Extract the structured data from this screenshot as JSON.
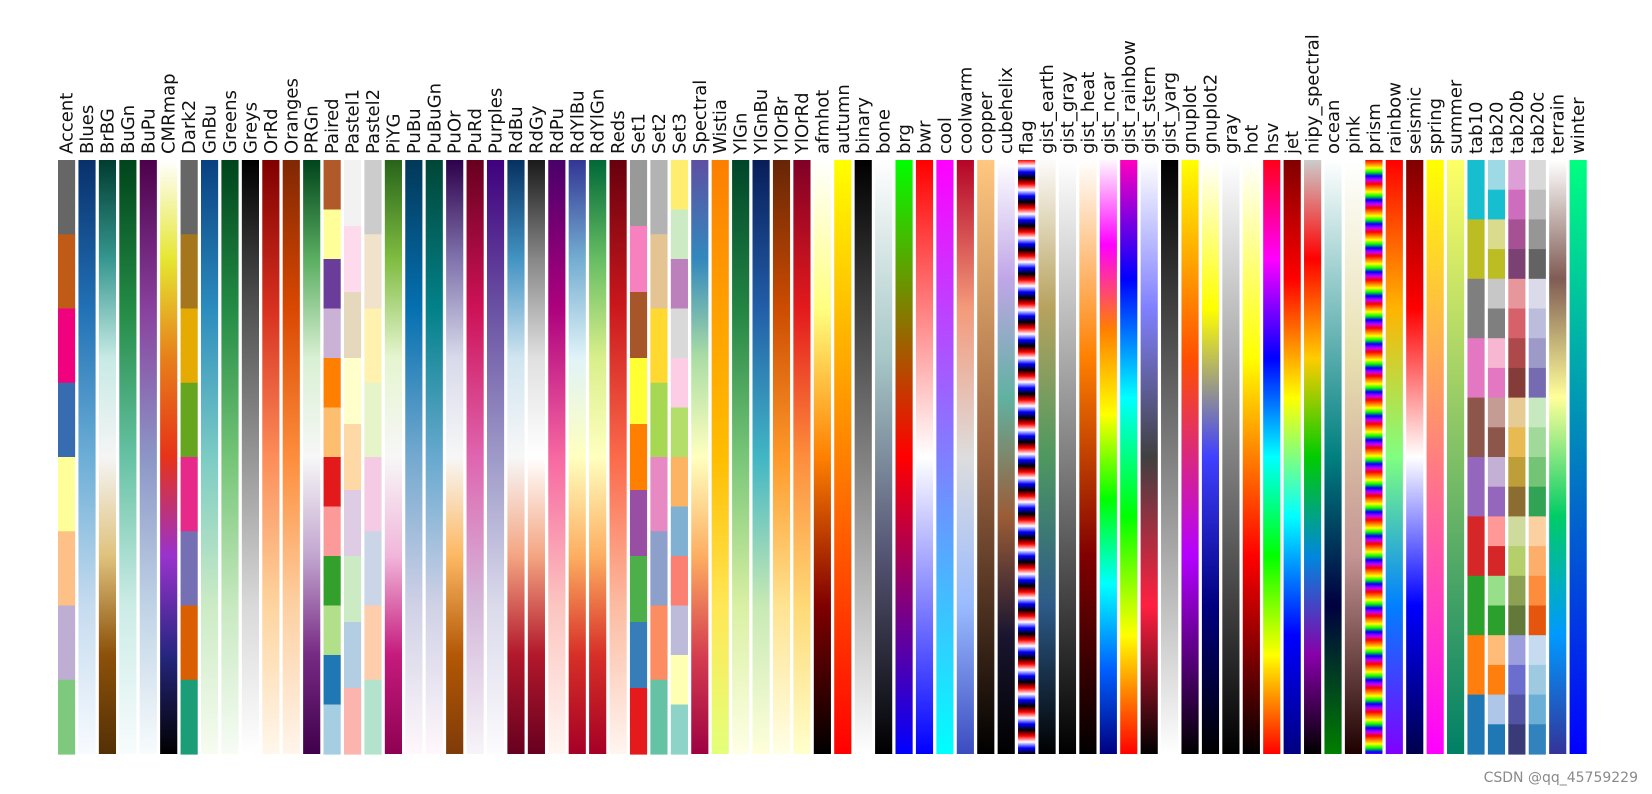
{
  "watermark": "CSDN @qq_45759229",
  "chart_data": {
    "type": "colormap-swatches",
    "title": "",
    "colormaps": [
      {
        "name": "Accent",
        "kind": "discrete",
        "colors": [
          "#666666",
          "#bf5b17",
          "#f0027f",
          "#386cb0",
          "#ffff99",
          "#fdc086",
          "#beaed4",
          "#7fc97f"
        ]
      },
      {
        "name": "Blues",
        "kind": "continuous",
        "colors": [
          "#08306b",
          "#2171b5",
          "#6baed6",
          "#c6dbef",
          "#f7fbff"
        ]
      },
      {
        "name": "BrBG",
        "kind": "continuous",
        "colors": [
          "#003c30",
          "#35978f",
          "#c7eae5",
          "#f5f5f5",
          "#dfc27d",
          "#8c510a",
          "#543005"
        ]
      },
      {
        "name": "BuGn",
        "kind": "continuous",
        "colors": [
          "#00441b",
          "#238b45",
          "#66c2a4",
          "#ccece6",
          "#f7fcfd"
        ]
      },
      {
        "name": "BuPu",
        "kind": "continuous",
        "colors": [
          "#4d004b",
          "#88419d",
          "#8c96c6",
          "#bfd3e6",
          "#f7fcfd"
        ]
      },
      {
        "name": "CMRmap",
        "kind": "continuous",
        "colors": [
          "#ffffff",
          "#e6e632",
          "#e6801a",
          "#e63319",
          "#9933cc",
          "#262680",
          "#000000"
        ]
      },
      {
        "name": "Dark2",
        "kind": "discrete",
        "colors": [
          "#666666",
          "#a6761d",
          "#e6ab02",
          "#66a61e",
          "#e7298a",
          "#7570b3",
          "#d95f02",
          "#1b9e77"
        ]
      },
      {
        "name": "GnBu",
        "kind": "continuous",
        "colors": [
          "#084081",
          "#2b8cbe",
          "#7bccc4",
          "#ccebc5",
          "#f7fcf0"
        ]
      },
      {
        "name": "Greens",
        "kind": "continuous",
        "colors": [
          "#00441b",
          "#238b45",
          "#74c476",
          "#c7e9c0",
          "#f7fcf5"
        ]
      },
      {
        "name": "Greys",
        "kind": "continuous",
        "colors": [
          "#000000",
          "#525252",
          "#969696",
          "#d9d9d9",
          "#ffffff"
        ]
      },
      {
        "name": "OrRd",
        "kind": "continuous",
        "colors": [
          "#7f0000",
          "#d7301f",
          "#fc8d59",
          "#fdd49e",
          "#fff7ec"
        ]
      },
      {
        "name": "Oranges",
        "kind": "continuous",
        "colors": [
          "#7f2704",
          "#d94801",
          "#fd8d3c",
          "#fdd0a2",
          "#fff5eb"
        ]
      },
      {
        "name": "PRGn",
        "kind": "continuous",
        "colors": [
          "#00441b",
          "#5aae61",
          "#d9f0d3",
          "#f7f7f7",
          "#c2a5cf",
          "#762a83",
          "#40004b"
        ]
      },
      {
        "name": "Paired",
        "kind": "discrete",
        "colors": [
          "#b15928",
          "#ffff99",
          "#6a3d9a",
          "#cab2d6",
          "#ff7f00",
          "#fdbf6f",
          "#e31a1c",
          "#fb9a99",
          "#33a02c",
          "#b2df8a",
          "#1f78b4",
          "#a6cee3"
        ]
      },
      {
        "name": "Pastel1",
        "kind": "discrete",
        "colors": [
          "#f2f2f2",
          "#fddaec",
          "#e5d8bd",
          "#ffffcc",
          "#fed9a6",
          "#decbe4",
          "#ccebc5",
          "#b3cde3",
          "#fbb4ae"
        ]
      },
      {
        "name": "Pastel2",
        "kind": "discrete",
        "colors": [
          "#cccccc",
          "#f1e2cc",
          "#fff2ae",
          "#e6f5c9",
          "#f4cae4",
          "#cbd5e8",
          "#fdcdac",
          "#b3e2cd"
        ]
      },
      {
        "name": "PiYG",
        "kind": "continuous",
        "colors": [
          "#276419",
          "#7fbc41",
          "#e6f5d0",
          "#f7f7f7",
          "#f1b6da",
          "#c51b7d",
          "#8e0152"
        ]
      },
      {
        "name": "PuBu",
        "kind": "continuous",
        "colors": [
          "#023858",
          "#0570b0",
          "#74a9cf",
          "#d0d1e6",
          "#fff7fb"
        ]
      },
      {
        "name": "PuBuGn",
        "kind": "continuous",
        "colors": [
          "#014636",
          "#02818a",
          "#67a9cf",
          "#d0d1e6",
          "#fff7fb"
        ]
      },
      {
        "name": "PuOr",
        "kind": "continuous",
        "colors": [
          "#2d004b",
          "#8073ac",
          "#d8daeb",
          "#f7f7f7",
          "#fdb863",
          "#b35806",
          "#7f3b08"
        ]
      },
      {
        "name": "PuRd",
        "kind": "continuous",
        "colors": [
          "#67001f",
          "#ce1256",
          "#df65b0",
          "#d4b9da",
          "#f7f4f9"
        ]
      },
      {
        "name": "Purples",
        "kind": "continuous",
        "colors": [
          "#3f007d",
          "#6a51a3",
          "#9e9ac8",
          "#dadaeb",
          "#fcfbfd"
        ]
      },
      {
        "name": "RdBu",
        "kind": "continuous",
        "colors": [
          "#053061",
          "#4393c3",
          "#d1e5f0",
          "#f7f7f7",
          "#f4a582",
          "#b2182b",
          "#67001f"
        ]
      },
      {
        "name": "RdGy",
        "kind": "continuous",
        "colors": [
          "#1a1a1a",
          "#878787",
          "#e0e0e0",
          "#ffffff",
          "#f4a582",
          "#b2182b",
          "#67001f"
        ]
      },
      {
        "name": "RdPu",
        "kind": "continuous",
        "colors": [
          "#49006a",
          "#ae017e",
          "#f768a1",
          "#fcc5c0",
          "#fff7f3"
        ]
      },
      {
        "name": "RdYlBu",
        "kind": "continuous",
        "colors": [
          "#313695",
          "#74add1",
          "#e0f3f8",
          "#ffffbf",
          "#fdae61",
          "#d73027",
          "#a50026"
        ]
      },
      {
        "name": "RdYlGn",
        "kind": "continuous",
        "colors": [
          "#006837",
          "#66bd63",
          "#d9ef8b",
          "#ffffbf",
          "#fdae61",
          "#d73027",
          "#a50026"
        ]
      },
      {
        "name": "Reds",
        "kind": "continuous",
        "colors": [
          "#67000d",
          "#cb181d",
          "#fb6a4a",
          "#fcbba1",
          "#fff5f0"
        ]
      },
      {
        "name": "Set1",
        "kind": "discrete",
        "colors": [
          "#999999",
          "#f781bf",
          "#a65628",
          "#ffff33",
          "#ff7f00",
          "#984ea3",
          "#4daf4a",
          "#377eb8",
          "#e41a1c"
        ]
      },
      {
        "name": "Set2",
        "kind": "discrete",
        "colors": [
          "#b3b3b3",
          "#e5c494",
          "#ffd92f",
          "#a6d854",
          "#e78ac3",
          "#8da0cb",
          "#fc8d62",
          "#66c2a5"
        ]
      },
      {
        "name": "Set3",
        "kind": "discrete",
        "colors": [
          "#ffed6f",
          "#ccebc5",
          "#bc80bd",
          "#d9d9d9",
          "#fccde5",
          "#b3de69",
          "#fdb462",
          "#80b1d3",
          "#fb8072",
          "#bebada",
          "#ffffb3",
          "#8dd3c7"
        ]
      },
      {
        "name": "Spectral",
        "kind": "continuous",
        "colors": [
          "#5e4fa2",
          "#3288bd",
          "#abdda4",
          "#ffffbf",
          "#fdae61",
          "#d53e4f",
          "#9e0142"
        ]
      },
      {
        "name": "Wistia",
        "kind": "continuous",
        "colors": [
          "#fc7f00",
          "#ffa000",
          "#ffbd00",
          "#ffe755",
          "#e4ff7a"
        ]
      },
      {
        "name": "YlGn",
        "kind": "continuous",
        "colors": [
          "#004529",
          "#238443",
          "#78c679",
          "#d9f0a3",
          "#ffffe5"
        ]
      },
      {
        "name": "YlGnBu",
        "kind": "continuous",
        "colors": [
          "#081d58",
          "#225ea8",
          "#41b6c4",
          "#c7e9b4",
          "#ffffd9"
        ]
      },
      {
        "name": "YlOrBr",
        "kind": "continuous",
        "colors": [
          "#662506",
          "#cc4c02",
          "#fe9929",
          "#fee391",
          "#ffffe5"
        ]
      },
      {
        "name": "YlOrRd",
        "kind": "continuous",
        "colors": [
          "#800026",
          "#e31a1c",
          "#fd8d3c",
          "#fed976",
          "#ffffcc"
        ]
      },
      {
        "name": "afmhot",
        "kind": "continuous",
        "colors": [
          "#ffffff",
          "#ffff80",
          "#ff8000",
          "#800000",
          "#000000"
        ]
      },
      {
        "name": "autumn",
        "kind": "continuous",
        "colors": [
          "#ffff00",
          "#ff8000",
          "#ff0000"
        ]
      },
      {
        "name": "binary",
        "kind": "continuous",
        "colors": [
          "#000000",
          "#808080",
          "#ffffff"
        ]
      },
      {
        "name": "bone",
        "kind": "continuous",
        "colors": [
          "#ffffff",
          "#a7c7c7",
          "#545473",
          "#000000"
        ]
      },
      {
        "name": "brg",
        "kind": "continuous",
        "colors": [
          "#00ff00",
          "#ff0000",
          "#0000ff"
        ]
      },
      {
        "name": "bwr",
        "kind": "continuous",
        "colors": [
          "#ff0000",
          "#ffffff",
          "#0000ff"
        ]
      },
      {
        "name": "cool",
        "kind": "continuous",
        "colors": [
          "#ff00ff",
          "#00ffff"
        ]
      },
      {
        "name": "coolwarm",
        "kind": "continuous",
        "colors": [
          "#b40426",
          "#f49a7b",
          "#dddddd",
          "#9abbff",
          "#3b4cc0"
        ]
      },
      {
        "name": "copper",
        "kind": "continuous",
        "colors": [
          "#ffc77f",
          "#9c6340",
          "#000000"
        ]
      },
      {
        "name": "cubehelix",
        "kind": "continuous",
        "colors": [
          "#ffffff",
          "#c0a6e8",
          "#60b2a0",
          "#9b5c37",
          "#1a1530",
          "#000000"
        ]
      },
      {
        "name": "flag",
        "kind": "stripes",
        "colors": [
          "#ff0000",
          "#ffffff",
          "#0000ff",
          "#000000"
        ]
      },
      {
        "name": "gist_earth",
        "kind": "continuous",
        "colors": [
          "#fdfbfb",
          "#b7a25e",
          "#4e9860",
          "#2d5a88",
          "#000000"
        ]
      },
      {
        "name": "gist_gray",
        "kind": "continuous",
        "colors": [
          "#ffffff",
          "#808080",
          "#000000"
        ]
      },
      {
        "name": "gist_heat",
        "kind": "continuous",
        "colors": [
          "#ffffff",
          "#ff8000",
          "#800000",
          "#000000"
        ]
      },
      {
        "name": "gist_ncar",
        "kind": "continuous",
        "colors": [
          "#fef8fe",
          "#ff00ff",
          "#ff8000",
          "#ffff00",
          "#00ff00",
          "#00ffff",
          "#0060ff",
          "#000080"
        ]
      },
      {
        "name": "gist_rainbow",
        "kind": "continuous",
        "colors": [
          "#ff00bf",
          "#0000ff",
          "#00ffff",
          "#00ff00",
          "#ffff00",
          "#ff0000"
        ]
      },
      {
        "name": "gist_stern",
        "kind": "continuous",
        "colors": [
          "#ffffff",
          "#8080ff",
          "#404040",
          "#ff2040",
          "#000000"
        ]
      },
      {
        "name": "gist_yarg",
        "kind": "continuous",
        "colors": [
          "#000000",
          "#808080",
          "#ffffff"
        ]
      },
      {
        "name": "gnuplot",
        "kind": "continuous",
        "colors": [
          "#ffff00",
          "#ff5000",
          "#b400ff",
          "#000000"
        ]
      },
      {
        "name": "gnuplot2",
        "kind": "continuous",
        "colors": [
          "#ffffff",
          "#ffff00",
          "#4040ff",
          "#000080",
          "#000000"
        ]
      },
      {
        "name": "gray",
        "kind": "continuous",
        "colors": [
          "#ffffff",
          "#808080",
          "#000000"
        ]
      },
      {
        "name": "hot",
        "kind": "continuous",
        "colors": [
          "#ffffff",
          "#ffff00",
          "#ff0000",
          "#000000"
        ]
      },
      {
        "name": "hsv",
        "kind": "continuous",
        "colors": [
          "#ff0018",
          "#ff00ff",
          "#0000ff",
          "#00ffff",
          "#00ff00",
          "#ffff00",
          "#ff0000"
        ]
      },
      {
        "name": "jet",
        "kind": "continuous",
        "colors": [
          "#800000",
          "#ff0000",
          "#ffff00",
          "#00ffff",
          "#0000ff",
          "#000080"
        ]
      },
      {
        "name": "nipy_spectral",
        "kind": "continuous",
        "colors": [
          "#cccccc",
          "#ff0000",
          "#ffcc00",
          "#00cc00",
          "#0088dd",
          "#8800aa",
          "#000000"
        ]
      },
      {
        "name": "ocean",
        "kind": "continuous",
        "colors": [
          "#ffffff",
          "#80c0c0",
          "#008080",
          "#000040",
          "#008000"
        ]
      },
      {
        "name": "pink",
        "kind": "continuous",
        "colors": [
          "#ffffff",
          "#e8e0b0",
          "#c49494",
          "#1e0000"
        ]
      },
      {
        "name": "prism",
        "kind": "stripes",
        "colors": [
          "#ff0000",
          "#ff8000",
          "#ffff00",
          "#00ff00",
          "#0000ff",
          "#c000ff"
        ]
      },
      {
        "name": "rainbow",
        "kind": "continuous",
        "colors": [
          "#ff0000",
          "#ffb400",
          "#80ff80",
          "#0080ff",
          "#8000ff"
        ]
      },
      {
        "name": "seismic",
        "kind": "continuous",
        "colors": [
          "#800000",
          "#ff0000",
          "#ffffff",
          "#0000ff",
          "#00004c"
        ]
      },
      {
        "name": "spring",
        "kind": "continuous",
        "colors": [
          "#ffff00",
          "#ff00ff"
        ]
      },
      {
        "name": "summer",
        "kind": "continuous",
        "colors": [
          "#ffff66",
          "#80c066",
          "#008066"
        ]
      },
      {
        "name": "tab10",
        "kind": "discrete",
        "colors": [
          "#17becf",
          "#bcbd22",
          "#7f7f7f",
          "#e377c2",
          "#8c564b",
          "#9467bd",
          "#d62728",
          "#2ca02c",
          "#ff7f0e",
          "#1f77b4"
        ]
      },
      {
        "name": "tab20",
        "kind": "discrete",
        "colors": [
          "#9edae5",
          "#17becf",
          "#dbdb8d",
          "#bcbd22",
          "#c7c7c7",
          "#7f7f7f",
          "#f7b6d2",
          "#e377c2",
          "#c49c94",
          "#8c564b",
          "#c5b0d5",
          "#9467bd",
          "#ff9896",
          "#d62728",
          "#98df8a",
          "#2ca02c",
          "#ffbb78",
          "#ff7f0e",
          "#aec7e8",
          "#1f77b4"
        ]
      },
      {
        "name": "tab20b",
        "kind": "discrete",
        "colors": [
          "#de9ed6",
          "#ce6dbd",
          "#a55194",
          "#7b4173",
          "#e7969c",
          "#d6616b",
          "#ad494a",
          "#843c39",
          "#e7cb94",
          "#e7ba52",
          "#bd9e39",
          "#8c6d31",
          "#cedb9c",
          "#b5cf6b",
          "#8ca252",
          "#637939",
          "#9c9ede",
          "#6b6ecf",
          "#5254a3",
          "#393b79"
        ]
      },
      {
        "name": "tab20c",
        "kind": "discrete",
        "colors": [
          "#d9d9d9",
          "#bdbdbd",
          "#969696",
          "#636363",
          "#dadaeb",
          "#bcbddc",
          "#9e9ac8",
          "#756bb1",
          "#c7e9c0",
          "#a1d99b",
          "#74c476",
          "#31a354",
          "#fdd0a2",
          "#fdae6b",
          "#fd8d3c",
          "#e6550d",
          "#c6dbef",
          "#9ecae1",
          "#6baed6",
          "#3182bd"
        ]
      },
      {
        "name": "terrain",
        "kind": "continuous",
        "colors": [
          "#ffffff",
          "#805c54",
          "#ffff99",
          "#00cc66",
          "#0099ff",
          "#333399"
        ]
      },
      {
        "name": "winter",
        "kind": "continuous",
        "colors": [
          "#00ff80",
          "#0000ff"
        ]
      }
    ]
  }
}
